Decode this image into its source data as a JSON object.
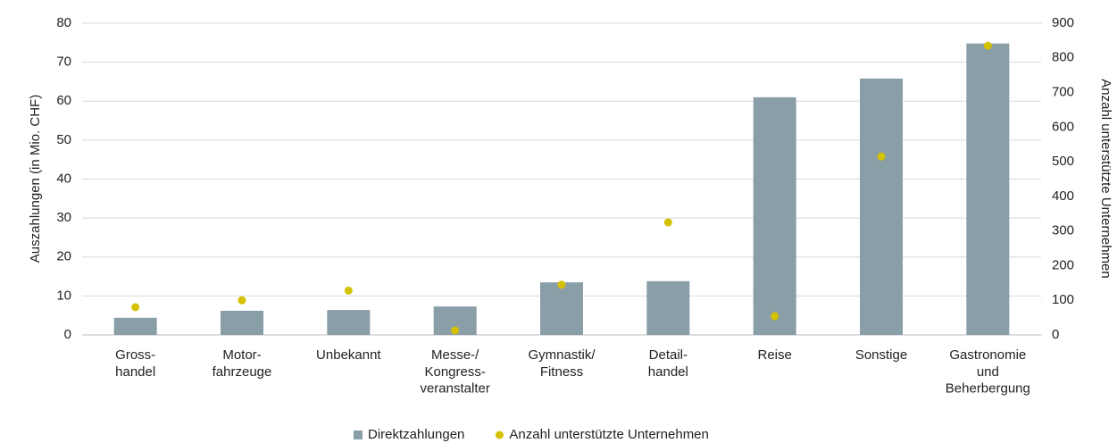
{
  "chart_data": {
    "type": "bar",
    "y_label": "Auszahlungen (in Mio. CHF)",
    "y2_label": "Anzahl unterstützte Unternehmen",
    "categories": [
      "Gross-\nhandel",
      "Motor-\nfahrzeuge",
      "Unbekannt",
      "Messe-/\nKongress-\nveranstalter",
      "Gymnastik/\nFitness",
      "Detail-\nhandel",
      "Reise",
      "Sonstige",
      "Gastronomie\nund\nBeherbergung"
    ],
    "series": [
      {
        "name": "Direktzahlungen",
        "type": "bar",
        "color": "#8a9ea8",
        "values": [
          4.4,
          6.2,
          6.4,
          7.3,
          13.5,
          13.8,
          61.0,
          65.8,
          74.8
        ]
      },
      {
        "name": "Anzahl unterstützte Unternehmen",
        "type": "scatter",
        "axis": "y2",
        "color": "#d4c100",
        "values": [
          80,
          100,
          128,
          13,
          145,
          325,
          54,
          515,
          835
        ]
      }
    ],
    "ylim": [
      0,
      80
    ],
    "yticks": [
      0,
      10,
      20,
      30,
      40,
      50,
      60,
      70,
      80
    ],
    "y2lim": [
      0,
      900
    ],
    "y2ticks": [
      0,
      100,
      200,
      300,
      400,
      500,
      600,
      700,
      800,
      900
    ],
    "grid": true,
    "legend": "bottom"
  }
}
